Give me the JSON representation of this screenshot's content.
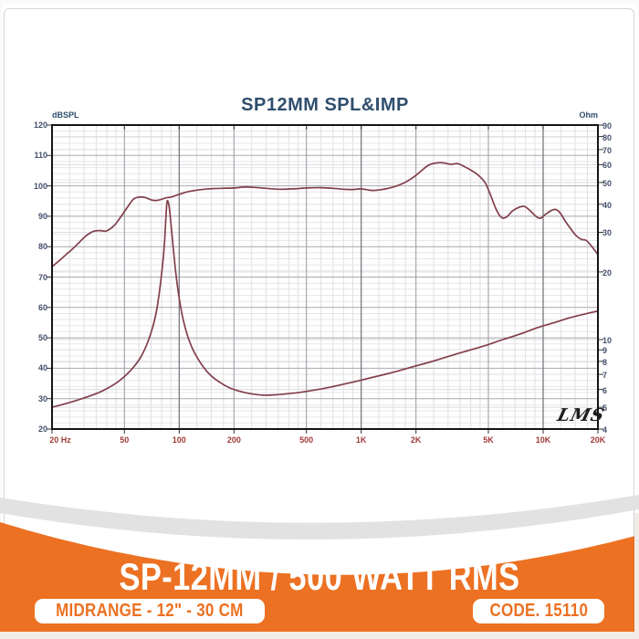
{
  "banner": {
    "title": "SP-12MM / 500 WATT RMS",
    "badge_left": "MIDRANGE - 12\" - 30 CM",
    "badge_right": "CODE. 15110",
    "orange": "#EC7123"
  },
  "chart_data": {
    "type": "line",
    "title": "SP12MM SPL&IMP",
    "watermark": "LMS",
    "curve_color": "#823F4A",
    "grid": "log-x dual-y",
    "legend": "none",
    "x_axis": {
      "scale": "log",
      "min": 20,
      "max": 20000,
      "ticks": [
        {
          "label": "20 Hz",
          "value": 20,
          "dx": 9
        },
        {
          "label": "50",
          "value": 50
        },
        {
          "label": "100",
          "value": 100
        },
        {
          "label": "200",
          "value": 200
        },
        {
          "label": "500",
          "value": 500
        },
        {
          "label": "1K",
          "value": 1000
        },
        {
          "label": "2K",
          "value": 2000
        },
        {
          "label": "5K",
          "value": 5000
        },
        {
          "label": "10K",
          "value": 10000
        },
        {
          "label": "20K",
          "value": 20000
        }
      ]
    },
    "y_left": {
      "unit": "dBSPL",
      "min": 20,
      "max": 120,
      "ticks": [
        120,
        110,
        100,
        90,
        80,
        70,
        60,
        50,
        40,
        30,
        20
      ]
    },
    "y_right": {
      "unit": "Ohm",
      "scale": "log",
      "min": 4,
      "max": 90,
      "ticks": [
        90,
        80,
        70,
        60,
        50,
        40,
        30,
        20,
        10,
        9,
        8,
        7,
        6,
        5,
        4
      ]
    },
    "series": [
      {
        "name": "SPL",
        "axis": "left",
        "unit": "dB",
        "points": [
          [
            20,
            73.4
          ],
          [
            22,
            75.5
          ],
          [
            24,
            77.5
          ],
          [
            26,
            79.3
          ],
          [
            28,
            81.2
          ],
          [
            30,
            83
          ],
          [
            32,
            84.3
          ],
          [
            34,
            85.1
          ],
          [
            36,
            85.3
          ],
          [
            38,
            85.2
          ],
          [
            40,
            85.2
          ],
          [
            44,
            87
          ],
          [
            48,
            90
          ],
          [
            52,
            93
          ],
          [
            56,
            95.6
          ],
          [
            60,
            96.3
          ],
          [
            65,
            96.2
          ],
          [
            70,
            95.4
          ],
          [
            75,
            95.2
          ],
          [
            80,
            95.6
          ],
          [
            85,
            96.1
          ],
          [
            90,
            96.3
          ],
          [
            100,
            97.2
          ],
          [
            110,
            98
          ],
          [
            125,
            98.6
          ],
          [
            145,
            99
          ],
          [
            170,
            99.2
          ],
          [
            200,
            99.3
          ],
          [
            230,
            99.6
          ],
          [
            260,
            99.5
          ],
          [
            300,
            99.2
          ],
          [
            350,
            98.9
          ],
          [
            420,
            99
          ],
          [
            500,
            99.3
          ],
          [
            600,
            99.4
          ],
          [
            700,
            99.2
          ],
          [
            800,
            98.9
          ],
          [
            900,
            98.8
          ],
          [
            1000,
            99
          ],
          [
            1150,
            98.5
          ],
          [
            1300,
            98.8
          ],
          [
            1500,
            99.6
          ],
          [
            1700,
            100.8
          ],
          [
            1900,
            102.5
          ],
          [
            2100,
            104.5
          ],
          [
            2300,
            106.5
          ],
          [
            2500,
            107.4
          ],
          [
            2800,
            107.6
          ],
          [
            3100,
            107.1
          ],
          [
            3400,
            107.3
          ],
          [
            3700,
            106.3
          ],
          [
            4000,
            105.2
          ],
          [
            4400,
            103.5
          ],
          [
            4800,
            101
          ],
          [
            5100,
            97.5
          ],
          [
            5500,
            92.5
          ],
          [
            5900,
            89.6
          ],
          [
            6300,
            89.8
          ],
          [
            6800,
            91.8
          ],
          [
            7400,
            93
          ],
          [
            7900,
            93.2
          ],
          [
            8500,
            91.8
          ],
          [
            9200,
            89.8
          ],
          [
            9700,
            89.4
          ],
          [
            10400,
            90.8
          ],
          [
            11200,
            92
          ],
          [
            11800,
            92.2
          ],
          [
            12500,
            90.8
          ],
          [
            13200,
            88.5
          ],
          [
            14200,
            85.8
          ],
          [
            15200,
            83.6
          ],
          [
            16200,
            82.4
          ],
          [
            17200,
            82.1
          ],
          [
            18200,
            80.6
          ],
          [
            19100,
            79
          ],
          [
            20000,
            77.4
          ]
        ]
      },
      {
        "name": "Impedance",
        "axis": "right",
        "unit": "ohm",
        "points": [
          [
            20,
            5.0
          ],
          [
            25,
            5.25
          ],
          [
            30,
            5.5
          ],
          [
            35,
            5.75
          ],
          [
            40,
            6.05
          ],
          [
            45,
            6.4
          ],
          [
            50,
            6.85
          ],
          [
            55,
            7.4
          ],
          [
            60,
            8.1
          ],
          [
            64,
            8.9
          ],
          [
            68,
            10.0
          ],
          [
            72,
            11.6
          ],
          [
            75,
            13.4
          ],
          [
            78,
            16.5
          ],
          [
            81,
            21.5
          ],
          [
            83,
            27
          ],
          [
            85,
            38
          ],
          [
            86,
            41.5
          ],
          [
            88,
            39
          ],
          [
            90,
            33
          ],
          [
            93,
            25
          ],
          [
            96,
            19.5
          ],
          [
            100,
            15.3
          ],
          [
            105,
            12.3
          ],
          [
            112,
            10.2
          ],
          [
            120,
            8.9
          ],
          [
            132,
            7.8
          ],
          [
            147,
            7.0
          ],
          [
            165,
            6.5
          ],
          [
            185,
            6.15
          ],
          [
            210,
            5.92
          ],
          [
            245,
            5.75
          ],
          [
            290,
            5.66
          ],
          [
            340,
            5.68
          ],
          [
            400,
            5.75
          ],
          [
            480,
            5.85
          ],
          [
            580,
            6.0
          ],
          [
            700,
            6.18
          ],
          [
            850,
            6.4
          ],
          [
            1000,
            6.6
          ],
          [
            1250,
            6.9
          ],
          [
            1550,
            7.2
          ],
          [
            1900,
            7.55
          ],
          [
            2400,
            7.95
          ],
          [
            3000,
            8.4
          ],
          [
            3800,
            8.9
          ],
          [
            4800,
            9.4
          ],
          [
            6000,
            10.0
          ],
          [
            7500,
            10.6
          ],
          [
            9300,
            11.3
          ],
          [
            11500,
            11.9
          ],
          [
            14000,
            12.5
          ],
          [
            17000,
            13.0
          ],
          [
            20000,
            13.4
          ]
        ]
      }
    ]
  }
}
